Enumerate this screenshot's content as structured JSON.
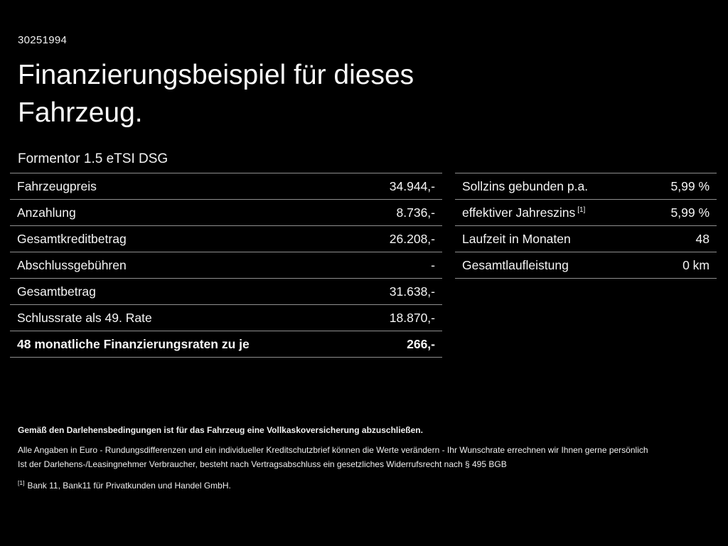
{
  "header": {
    "doc_id": "30251994",
    "title": "Finanzierungsbeispiel für dieses Fahrzeug.",
    "vehicle": "Formentor 1.5 eTSI DSG"
  },
  "financing_table": {
    "rows": [
      {
        "label": "Fahrzeugpreis",
        "value": "34.944,-"
      },
      {
        "label": "Anzahlung",
        "value": "8.736,-"
      },
      {
        "label": "Gesamtkreditbetrag",
        "value": "26.208,-"
      },
      {
        "label": "Abschlussgebühren",
        "value": "-"
      },
      {
        "label": "Gesamtbetrag",
        "value": "31.638,-"
      },
      {
        "label": "Schlussrate als 49. Rate",
        "value": "18.870,-"
      },
      {
        "label": "48 monatliche Finanzierungsraten zu je",
        "value": "266,-"
      }
    ]
  },
  "conditions_table": {
    "rows": [
      {
        "label": "Sollzins gebunden p.a.",
        "value": "5,99 %"
      },
      {
        "label": "effektiver Jahreszins",
        "sup": "[1]",
        "value": "5,99 %"
      },
      {
        "label": "Laufzeit in Monaten",
        "value": "48"
      },
      {
        "label": "Gesamtlaufleistung",
        "value": "0 km"
      }
    ]
  },
  "footer": {
    "insurance_note": "Gemäß den Darlehensbedingungen ist für das Fahrzeug eine Vollkaskoversicherung abzuschließen.",
    "disclaimer1": "Alle Angaben in Euro - Rundungsdifferenzen und ein individueller Kreditschutzbrief können die Werte verändern - Ihr Wunschrate errechnen wir Ihnen gerne persönlich",
    "disclaimer2": "Ist der Darlehens-/Leasingnehmer Verbraucher, besteht nach Vertragsabschluss ein gesetzliches Widerrufsrecht nach § 495 BGB",
    "footnote_marker": "[1]",
    "footnote_text": "Bank 11, Bank11 für Privatkunden und Handel GmbH."
  }
}
